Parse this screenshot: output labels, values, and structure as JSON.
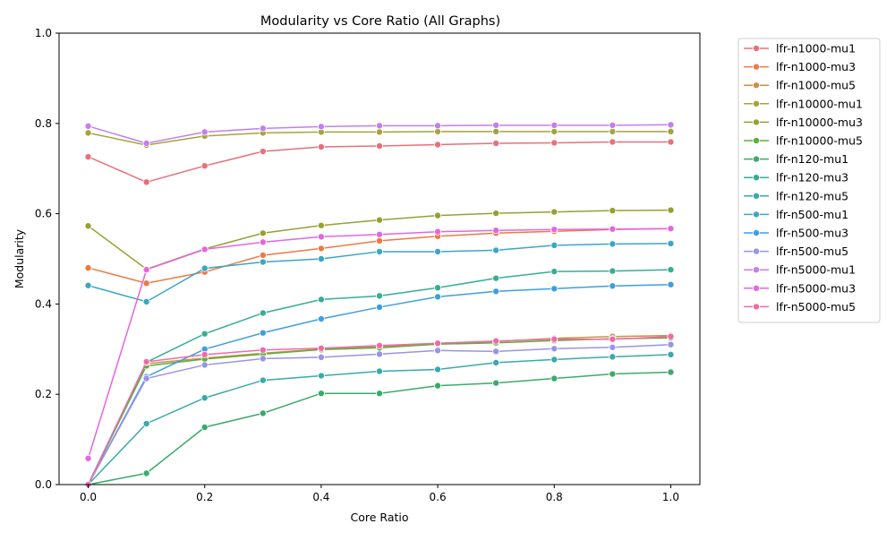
{
  "chart_data": {
    "type": "line",
    "title": "Modularity vs Core Ratio (All Graphs)",
    "xlabel": "Core Ratio",
    "ylabel": "Modularity",
    "xlim": [
      -0.05,
      1.05
    ],
    "ylim": [
      0,
      1.0
    ],
    "xticks": [
      0.0,
      0.2,
      0.4,
      0.6,
      0.8,
      1.0
    ],
    "xtick_labels": [
      "0.0",
      "0.2",
      "0.4",
      "0.6",
      "0.8",
      "1.0"
    ],
    "yticks": [
      0.0,
      0.2,
      0.4,
      0.6,
      0.8,
      1.0
    ],
    "ytick_labels": [
      "0.0",
      "0.2",
      "0.4",
      "0.6",
      "0.8",
      "1.0"
    ],
    "grid": false,
    "legend_position": "outside-right-top",
    "marker": "circle",
    "x": [
      0.0,
      0.1,
      0.2,
      0.3,
      0.4,
      0.5,
      0.6,
      0.7,
      0.8,
      0.9,
      1.0
    ],
    "series": [
      {
        "name": "lfr-n1000-mu1",
        "color": "#e8707a",
        "values": [
          0.726,
          0.67,
          0.706,
          0.738,
          0.748,
          0.75,
          0.753,
          0.756,
          0.757,
          0.759,
          0.759
        ]
      },
      {
        "name": "lfr-n1000-mu3",
        "color": "#ec7a44",
        "values": [
          0.48,
          0.446,
          0.471,
          0.508,
          0.523,
          0.54,
          0.55,
          0.557,
          0.561,
          0.565,
          0.567
        ]
      },
      {
        "name": "lfr-n1000-mu5",
        "color": "#c99147",
        "values": [
          0.0,
          0.268,
          0.28,
          0.291,
          0.3,
          0.305,
          0.313,
          0.317,
          0.324,
          0.328,
          0.33
        ]
      },
      {
        "name": "lfr-n10000-mu1",
        "color": "#a7a33b",
        "values": [
          0.779,
          0.752,
          0.772,
          0.779,
          0.781,
          0.781,
          0.782,
          0.782,
          0.782,
          0.782,
          0.782
        ]
      },
      {
        "name": "lfr-n10000-mu3",
        "color": "#96a131",
        "values": [
          0.573,
          0.477,
          0.522,
          0.557,
          0.574,
          0.586,
          0.596,
          0.601,
          0.604,
          0.607,
          0.608
        ]
      },
      {
        "name": "lfr-n10000-mu5",
        "color": "#5ead3a",
        "values": [
          0.0,
          0.263,
          0.278,
          0.289,
          0.299,
          0.303,
          0.311,
          0.314,
          0.319,
          0.323,
          0.325
        ]
      },
      {
        "name": "lfr-n120-mu1",
        "color": "#3aab6a",
        "values": [
          0.0,
          0.025,
          0.127,
          0.158,
          0.202,
          0.202,
          0.219,
          0.225,
          0.235,
          0.245,
          0.249
        ]
      },
      {
        "name": "lfr-n120-mu3",
        "color": "#36ad95",
        "values": [
          0.0,
          0.271,
          0.334,
          0.38,
          0.41,
          0.418,
          0.436,
          0.457,
          0.472,
          0.473,
          0.476
        ]
      },
      {
        "name": "lfr-n120-mu5",
        "color": "#37aaad",
        "values": [
          0.0,
          0.135,
          0.192,
          0.231,
          0.241,
          0.251,
          0.255,
          0.27,
          0.277,
          0.283,
          0.288
        ]
      },
      {
        "name": "lfr-n500-mu1",
        "color": "#39a7c4",
        "values": [
          0.441,
          0.405,
          0.479,
          0.493,
          0.5,
          0.516,
          0.516,
          0.519,
          0.53,
          0.533,
          0.534
        ]
      },
      {
        "name": "lfr-n500-mu3",
        "color": "#3d9fe0",
        "values": [
          0.0,
          0.239,
          0.3,
          0.336,
          0.367,
          0.393,
          0.416,
          0.428,
          0.434,
          0.44,
          0.443
        ]
      },
      {
        "name": "lfr-n500-mu5",
        "color": "#9a93e6",
        "values": [
          0.0,
          0.235,
          0.265,
          0.279,
          0.282,
          0.289,
          0.297,
          0.295,
          0.301,
          0.304,
          0.31
        ]
      },
      {
        "name": "lfr-n5000-mu1",
        "color": "#c47eee",
        "values": [
          0.794,
          0.756,
          0.781,
          0.789,
          0.793,
          0.795,
          0.795,
          0.796,
          0.796,
          0.796,
          0.797
        ]
      },
      {
        "name": "lfr-n5000-mu3",
        "color": "#e665e0",
        "values": [
          0.058,
          0.476,
          0.521,
          0.537,
          0.549,
          0.554,
          0.56,
          0.563,
          0.565,
          0.566,
          0.567
        ]
      },
      {
        "name": "lfr-n5000-mu5",
        "color": "#ef6aa9",
        "values": [
          0.0,
          0.272,
          0.288,
          0.298,
          0.302,
          0.308,
          0.313,
          0.318,
          0.322,
          0.322,
          0.328
        ]
      }
    ]
  }
}
